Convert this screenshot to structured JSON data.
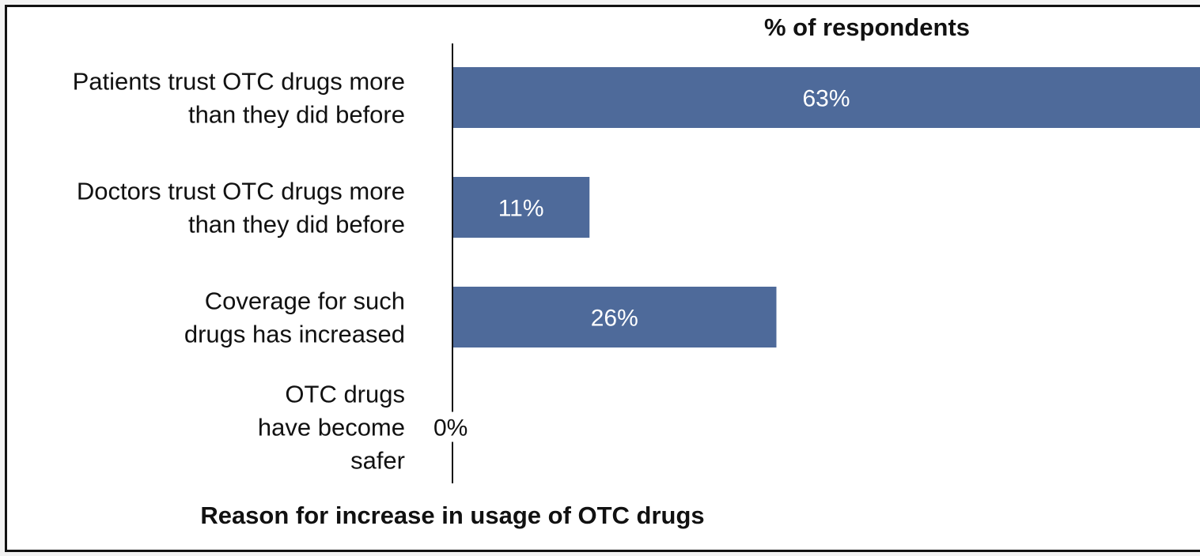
{
  "chart_data": {
    "type": "bar",
    "orientation": "horizontal",
    "title": "",
    "top_axis_title": "% of respondents",
    "xlabel": "% of respondents",
    "ylabel": "Reason for increase in usage of OTC drugs",
    "categories": [
      [
        "Patients trust OTC drugs more",
        "than they did before"
      ],
      [
        "Doctors trust OTC drugs more",
        "than they did before"
      ],
      [
        "Coverage for such",
        "drugs has increased"
      ],
      [
        "OTC drugs",
        "have become",
        "safer"
      ]
    ],
    "values": [
      63,
      11,
      26,
      0
    ],
    "value_labels": [
      "63%",
      "11%",
      "26%",
      "0%"
    ],
    "xlim": [
      0,
      60
    ],
    "grid": false,
    "legend": "none",
    "colors": {
      "bar": "#4e6a9a",
      "label_inside": "#ffffff",
      "label_outside": "#111111",
      "axis": "#111111"
    }
  }
}
